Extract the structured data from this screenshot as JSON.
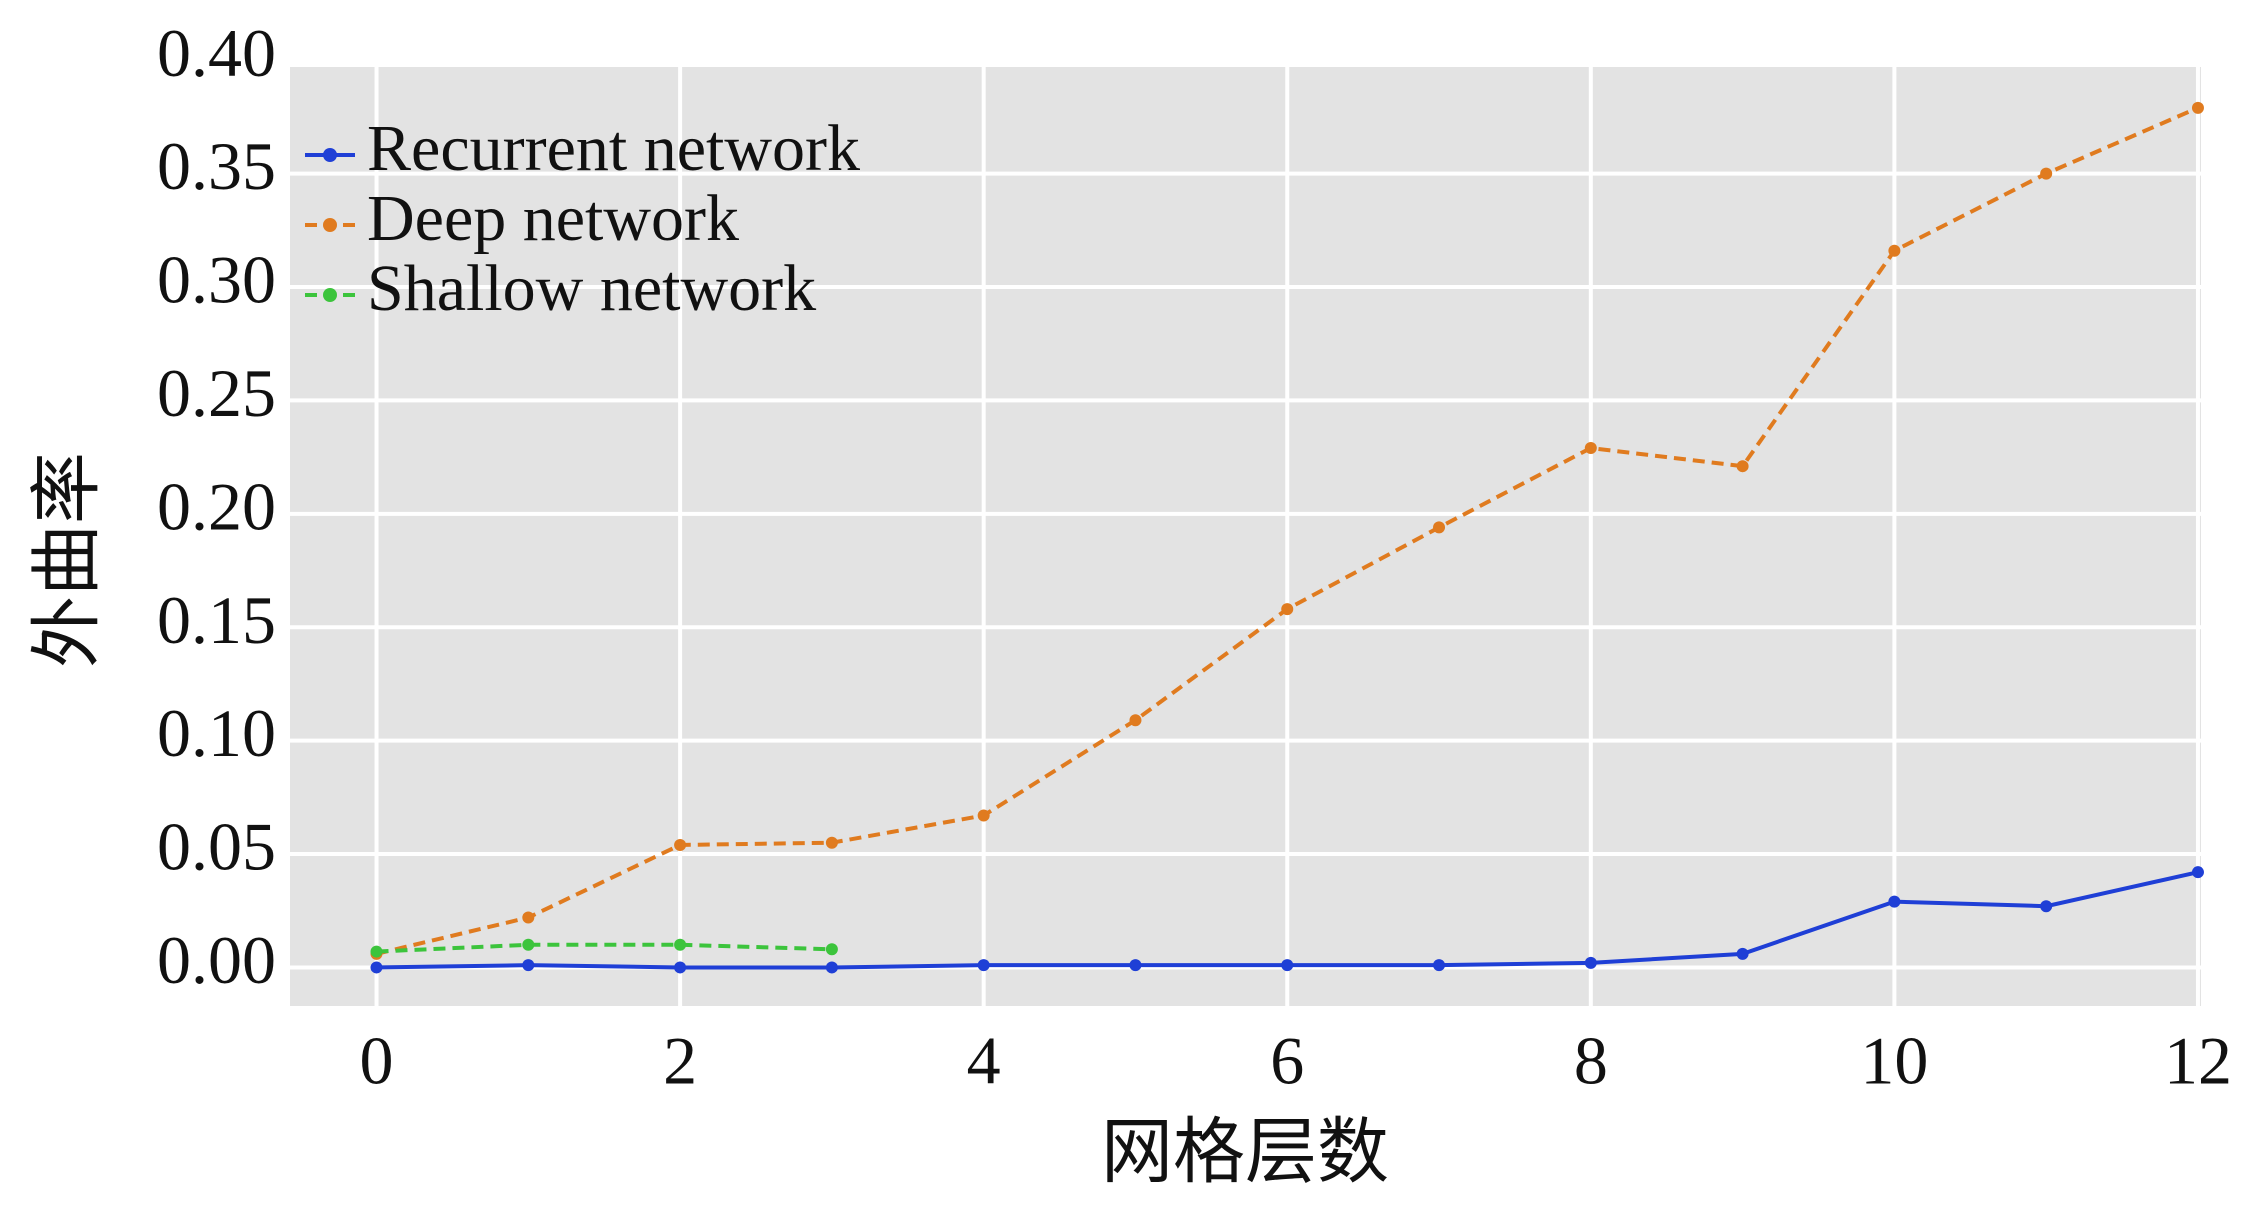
{
  "chart_data": {
    "type": "line",
    "xlabel": "网格层数",
    "ylabel": "外曲率",
    "x": [
      0,
      1,
      2,
      3,
      4,
      5,
      6,
      7,
      8,
      9,
      10,
      11,
      12
    ],
    "series": [
      {
        "name": "Recurrent network",
        "color": "#1f3fd6",
        "dash": "none",
        "values": [
          0,
          0.001,
          0,
          0,
          0.001,
          0.001,
          0.001,
          0.001,
          0.002,
          0.006,
          0.029,
          0.027,
          0.042
        ]
      },
      {
        "name": "Deep network",
        "color": "#e07b1f",
        "dash": "dashed",
        "values": [
          0.006,
          0.022,
          0.054,
          0.055,
          0.067,
          0.109,
          0.158,
          0.194,
          0.229,
          0.221,
          0.316,
          0.35,
          0.379
        ]
      },
      {
        "name": "Shallow network",
        "color": "#3cc43c",
        "dash": "dashed",
        "values": [
          0.007,
          0.01,
          0.01,
          0.008,
          null,
          null,
          null,
          null,
          null,
          null,
          null,
          null,
          null
        ]
      }
    ],
    "xlim": [
      -0.57,
      12.02
    ],
    "ylim": [
      -0.017,
      0.397
    ],
    "xticks": [
      0,
      2,
      4,
      6,
      8,
      10,
      12
    ],
    "yticks": [
      {
        "value": 0,
        "label": "0.00"
      },
      {
        "value": 0.05,
        "label": "0.05"
      },
      {
        "value": 0.1,
        "label": "0.10"
      },
      {
        "value": 0.15,
        "label": "0.15"
      },
      {
        "value": 0.2,
        "label": "0.20"
      },
      {
        "value": 0.25,
        "label": "0.25"
      },
      {
        "value": 0.3,
        "label": "0.30"
      },
      {
        "value": 0.35,
        "label": "0.35"
      },
      {
        "value": 0.4,
        "label": "0.40"
      }
    ],
    "grid": true,
    "legend": "upper left"
  }
}
